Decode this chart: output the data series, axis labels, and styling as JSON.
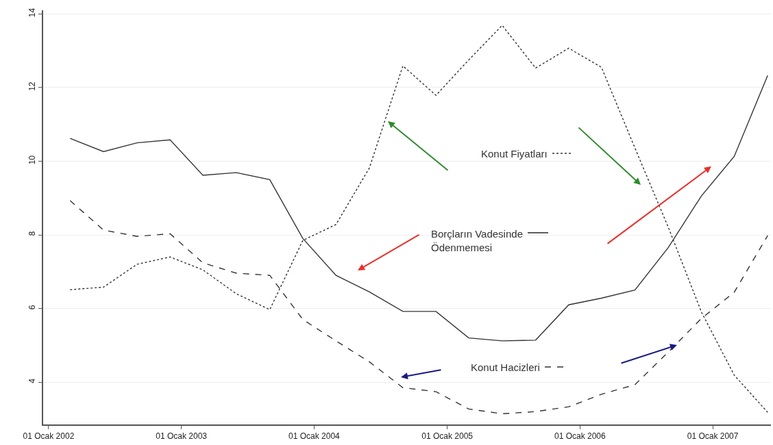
{
  "chart_data": {
    "type": "line",
    "x": [
      "2002-03-01",
      "2002-06-01",
      "2002-09-01",
      "2002-12-01",
      "2003-03-01",
      "2003-06-01",
      "2003-09-01",
      "2003-12-01",
      "2004-03-01",
      "2004-06-01",
      "2004-09-01",
      "2004-12-01",
      "2005-03-01",
      "2005-06-01",
      "2005-09-01",
      "2005-12-01",
      "2006-03-01",
      "2006-06-01",
      "2006-09-01",
      "2006-12-01",
      "2007-03-01",
      "2007-06-01"
    ],
    "series": [
      {
        "name": "Konut Fiyatları",
        "color": "#333333",
        "line_style": "dotted",
        "values": [
          6.51,
          6.58,
          7.2,
          7.4,
          7.05,
          6.4,
          5.97,
          7.85,
          8.28,
          9.82,
          12.59,
          11.79,
          12.75,
          13.69,
          12.53,
          13.07,
          12.55,
          10.36,
          8.2,
          5.9,
          4.19,
          3.18
        ]
      },
      {
        "name": "Borçların Vadesinde Ödenmemesi",
        "color": "#333333",
        "line_style": "solid",
        "values": [
          10.62,
          10.26,
          10.5,
          10.58,
          9.62,
          9.69,
          9.5,
          7.9,
          6.9,
          6.45,
          5.92,
          5.92,
          5.2,
          5.12,
          5.14,
          6.1,
          6.28,
          6.5,
          7.66,
          9.06,
          10.13,
          12.33
        ]
      },
      {
        "name": "Konut Hacizleri",
        "color": "#333333",
        "line_style": "dashed",
        "values": [
          8.93,
          8.13,
          7.96,
          8.03,
          7.24,
          6.96,
          6.9,
          5.7,
          5.12,
          4.55,
          3.85,
          3.74,
          3.27,
          3.14,
          3.2,
          3.33,
          3.67,
          3.93,
          4.82,
          5.73,
          6.44,
          7.98
        ]
      }
    ],
    "xlim": [
      "2001-12-17",
      "2007-06-10"
    ],
    "xticks": [
      {
        "value": "2002-01-01",
        "label": "01 Ocak 2002"
      },
      {
        "value": "2003-01-01",
        "label": "01 Ocak 2003"
      },
      {
        "value": "2004-01-01",
        "label": "01 Ocak 2004"
      },
      {
        "value": "2005-01-01",
        "label": "01 Ocak 2005"
      },
      {
        "value": "2006-01-01",
        "label": "01 Ocak 2006"
      },
      {
        "value": "2007-01-01",
        "label": "01 Ocak 2007"
      }
    ],
    "ylim": [
      2.85,
      14.1
    ],
    "yticks": [
      4,
      6,
      8,
      10,
      12,
      14
    ],
    "grid": "y",
    "legend": "center",
    "marker": "none"
  }
}
